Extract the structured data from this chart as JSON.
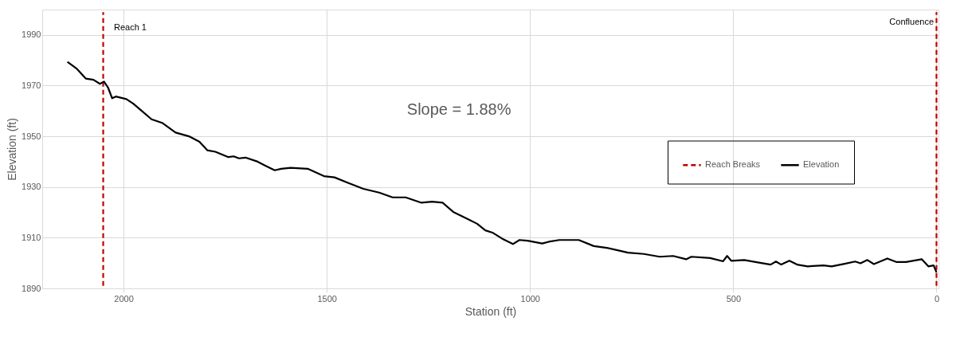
{
  "chart_data": {
    "type": "line",
    "xlabel": "Station (ft)",
    "ylabel": "Elevation (ft)",
    "xlim": [
      2200,
      -5
    ],
    "xticks": [
      2000,
      1500,
      1000,
      500,
      0
    ],
    "ylim": [
      1890,
      2000
    ],
    "yticks": [
      1890,
      1910,
      1930,
      1950,
      1970,
      1990
    ],
    "grid": true,
    "legend": "right",
    "marker": "none",
    "annotations": [
      "Slope = 1.88%",
      "Reach 1",
      "Confluence"
    ],
    "series": [
      {
        "name": "Reach Breaks",
        "color": "#c00000",
        "line_style": "dashed",
        "x": [
          2050,
          2050,
          1025,
          0,
          0
        ],
        "values": [
          1891,
          1999,
          null,
          1891,
          1999
        ]
      },
      {
        "name": "Elevation",
        "color": "#000000",
        "line_style": "solid",
        "x": [
          2138,
          2116,
          2093,
          2074,
          2058,
          2048,
          2038,
          2028,
          2019,
          1993,
          1976,
          1957,
          1931,
          1905,
          1872,
          1839,
          1813,
          1794,
          1774,
          1742,
          1729,
          1716,
          1700,
          1670,
          1651,
          1628,
          1612,
          1589,
          1547,
          1507,
          1481,
          1449,
          1410,
          1371,
          1338,
          1306,
          1267,
          1241,
          1215,
          1189,
          1156,
          1130,
          1110,
          1091,
          1065,
          1042,
          1026,
          1006,
          970,
          954,
          928,
          902,
          880,
          843,
          811,
          778,
          759,
          720,
          681,
          648,
          616,
          603,
          557,
          525,
          515,
          505,
          473,
          434,
          408,
          395,
          382,
          362,
          343,
          317,
          278,
          258,
          226,
          200,
          187,
          170,
          154,
          121,
          98,
          75,
          36,
          20,
          7,
          0
        ],
        "values": [
          1979.4,
          1976.8,
          1972.8,
          1972.3,
          1970.7,
          1971.6,
          1969.2,
          1965,
          1965.7,
          1964.7,
          1962.9,
          1960.3,
          1956.7,
          1955.3,
          1951.5,
          1950,
          1947.8,
          1944.5,
          1943.9,
          1941.8,
          1942.1,
          1941.3,
          1941.6,
          1940,
          1938.4,
          1936.6,
          1937.2,
          1937.6,
          1937.2,
          1934.3,
          1933.8,
          1931.7,
          1929.3,
          1927.8,
          1925.9,
          1925.9,
          1923.8,
          1924.2,
          1923.8,
          1920.2,
          1917.6,
          1915.5,
          1912.9,
          1911.9,
          1909.3,
          1907.5,
          1909.1,
          1908.8,
          1907.7,
          1908.4,
          1909.1,
          1909.1,
          1909.1,
          1906.7,
          1906,
          1904.8,
          1904.1,
          1903.6,
          1902.5,
          1902.8,
          1901.5,
          1902.5,
          1902,
          1900.7,
          1902.8,
          1900.9,
          1901.2,
          1900.1,
          1899.4,
          1900.6,
          1899.4,
          1900.9,
          1899.4,
          1898.7,
          1899.1,
          1898.7,
          1899.7,
          1900.6,
          1899.9,
          1901.2,
          1899.6,
          1901.8,
          1900.4,
          1900.4,
          1901.5,
          1898.7,
          1899.1,
          1896.3
        ]
      }
    ]
  }
}
